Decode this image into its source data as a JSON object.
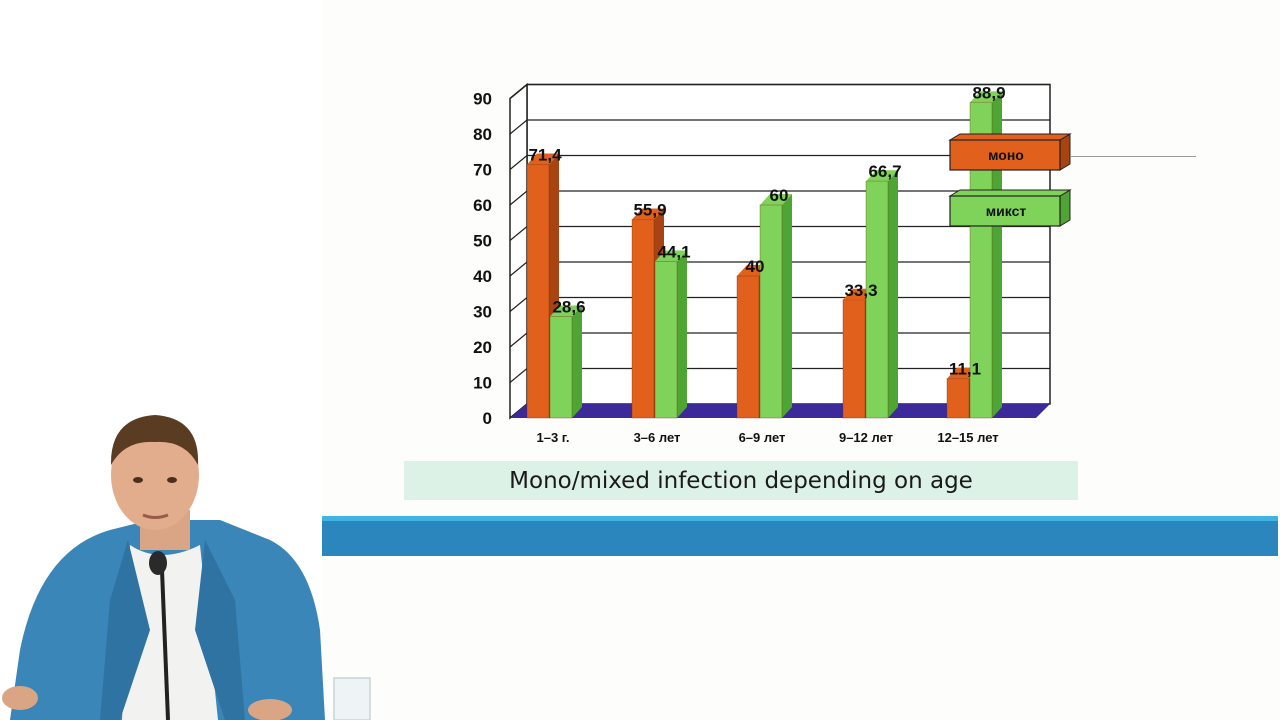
{
  "caption": "Mono/mixed infection depending on age",
  "colors": {
    "mono": "#e0601c",
    "mixed": "#7fd35a",
    "floor": "#3d2a9a",
    "band": "#2c86be",
    "caption_bg": "#dcf2e6"
  },
  "chart_data": {
    "type": "bar",
    "title": "",
    "xlabel": "",
    "ylabel": "",
    "categories": [
      "1–3 г.",
      "3–6 лет",
      "6–9 лет",
      "9–12 лет",
      "12–15 лет"
    ],
    "series": [
      {
        "name": "моно",
        "values": [
          71.4,
          55.9,
          40,
          33.3,
          11.1
        ],
        "labels": [
          "71,4",
          "55,9",
          "40",
          "33,3",
          "11,1"
        ]
      },
      {
        "name": "микст",
        "values": [
          28.6,
          44.1,
          60,
          66.7,
          88.9
        ],
        "labels": [
          "28,6",
          "44,1",
          "60",
          "66,7",
          "88,9"
        ]
      }
    ],
    "ylim": [
      0,
      90
    ],
    "yticks": [
      0,
      10,
      20,
      30,
      40,
      50,
      60,
      70,
      80,
      90
    ],
    "grid": true,
    "three_d": true,
    "legend_position": "right"
  }
}
